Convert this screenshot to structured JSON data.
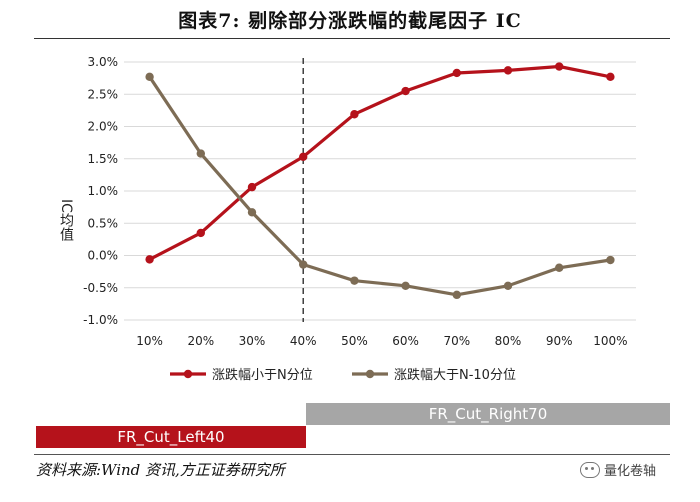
{
  "title": "图表7:  剔除部分涨跌幅的截尾因子 IC",
  "source": "资料来源:Wind 资讯,方正证券研究所",
  "watermark": "量化卷轴",
  "bands": {
    "left": "FR_Cut_Left40",
    "right": "FR_Cut_Right70"
  },
  "colors": {
    "series1": "#b5121b",
    "series2": "#7d6c55",
    "band_left": "#b5121b",
    "band_right": "#a6a6a6"
  },
  "chart_data": {
    "type": "line",
    "categories": [
      "10%",
      "20%",
      "30%",
      "40%",
      "50%",
      "60%",
      "70%",
      "80%",
      "90%",
      "100%"
    ],
    "ylabel": "IC均值",
    "ylim": [
      -1.0,
      3.0
    ],
    "yticks": [
      "-1.0%",
      "-0.5%",
      "0.0%",
      "0.5%",
      "1.0%",
      "1.5%",
      "2.0%",
      "2.5%",
      "3.0%"
    ],
    "ytick_values": [
      -1.0,
      -0.5,
      0.0,
      0.5,
      1.0,
      1.5,
      2.0,
      2.5,
      3.0
    ],
    "divider_at": "40%",
    "legend_position": "bottom",
    "series": [
      {
        "name": "涨跌幅小于N分位",
        "values": [
          -0.06,
          0.35,
          1.06,
          1.53,
          2.19,
          2.55,
          2.83,
          2.87,
          2.93,
          2.77
        ]
      },
      {
        "name": "涨跌幅大于N-10分位",
        "values": [
          2.77,
          1.58,
          0.67,
          -0.14,
          -0.39,
          -0.47,
          -0.61,
          -0.47,
          -0.19,
          -0.07
        ]
      }
    ]
  }
}
